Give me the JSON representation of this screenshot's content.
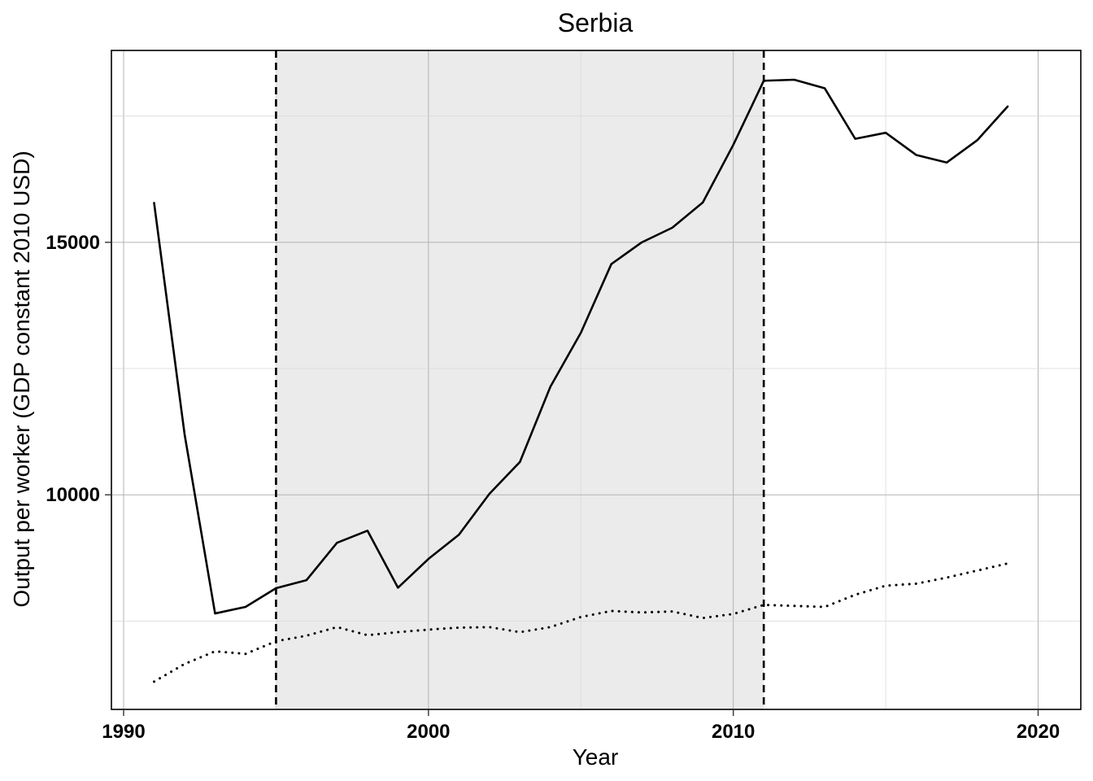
{
  "chart_data": {
    "type": "line",
    "title": "Serbia",
    "xlabel": "Year",
    "ylabel": "Output per worker (GDP constant 2010 USD)",
    "xlim": [
      1989.6,
      2021.4
    ],
    "ylim": [
      5750,
      18800
    ],
    "x_ticks": [
      1990,
      2000,
      2010,
      2020
    ],
    "y_ticks": [
      10000,
      15000
    ],
    "grid": true,
    "legend": "none",
    "shaded_region": {
      "x_start": 1995,
      "x_end": 2011,
      "color": "#ebebeb"
    },
    "vlines": [
      {
        "x": 1995,
        "style": "dashed"
      },
      {
        "x": 2011,
        "style": "dashed"
      }
    ],
    "series": [
      {
        "style": "solid",
        "color": "#000000",
        "x": [
          1991,
          1992,
          1993,
          1994,
          1995,
          1996,
          1997,
          1998,
          1999,
          2000,
          2001,
          2002,
          2003,
          2004,
          2005,
          2006,
          2007,
          2008,
          2009,
          2010,
          2011,
          2012,
          2013,
          2014,
          2015,
          2016,
          2017,
          2018,
          2019
        ],
        "values": [
          15780,
          11200,
          7650,
          7780,
          8150,
          8310,
          9050,
          9290,
          8160,
          8730,
          9210,
          10020,
          10650,
          12140,
          13210,
          14570,
          15000,
          15290,
          15790,
          16930,
          18200,
          18220,
          18050,
          17050,
          17170,
          16730,
          16580,
          17020,
          17690
        ]
      },
      {
        "style": "dotted",
        "color": "#000000",
        "x": [
          1991,
          1992,
          1993,
          1994,
          1995,
          1996,
          1997,
          1998,
          1999,
          2000,
          2001,
          2002,
          2003,
          2004,
          2005,
          2006,
          2007,
          2008,
          2009,
          2010,
          2011,
          2012,
          2013,
          2014,
          2015,
          2016,
          2017,
          2018,
          2019
        ],
        "values": [
          6300,
          6650,
          6900,
          6850,
          7100,
          7210,
          7380,
          7220,
          7280,
          7330,
          7370,
          7380,
          7280,
          7380,
          7580,
          7700,
          7670,
          7690,
          7560,
          7640,
          7820,
          7800,
          7780,
          8020,
          8200,
          8240,
          8360,
          8500,
          8640
        ]
      }
    ]
  }
}
